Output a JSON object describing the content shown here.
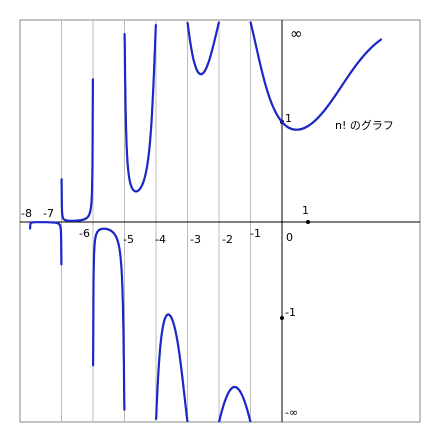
{
  "title": "n! のグラフ",
  "x_labels": [
    "-8",
    "-7",
    "-6",
    "-5",
    "-4",
    "-3",
    "-2",
    "-1",
    "0",
    "1"
  ],
  "y_labels": [
    "∞",
    "1",
    "-1",
    "-∞"
  ]
}
